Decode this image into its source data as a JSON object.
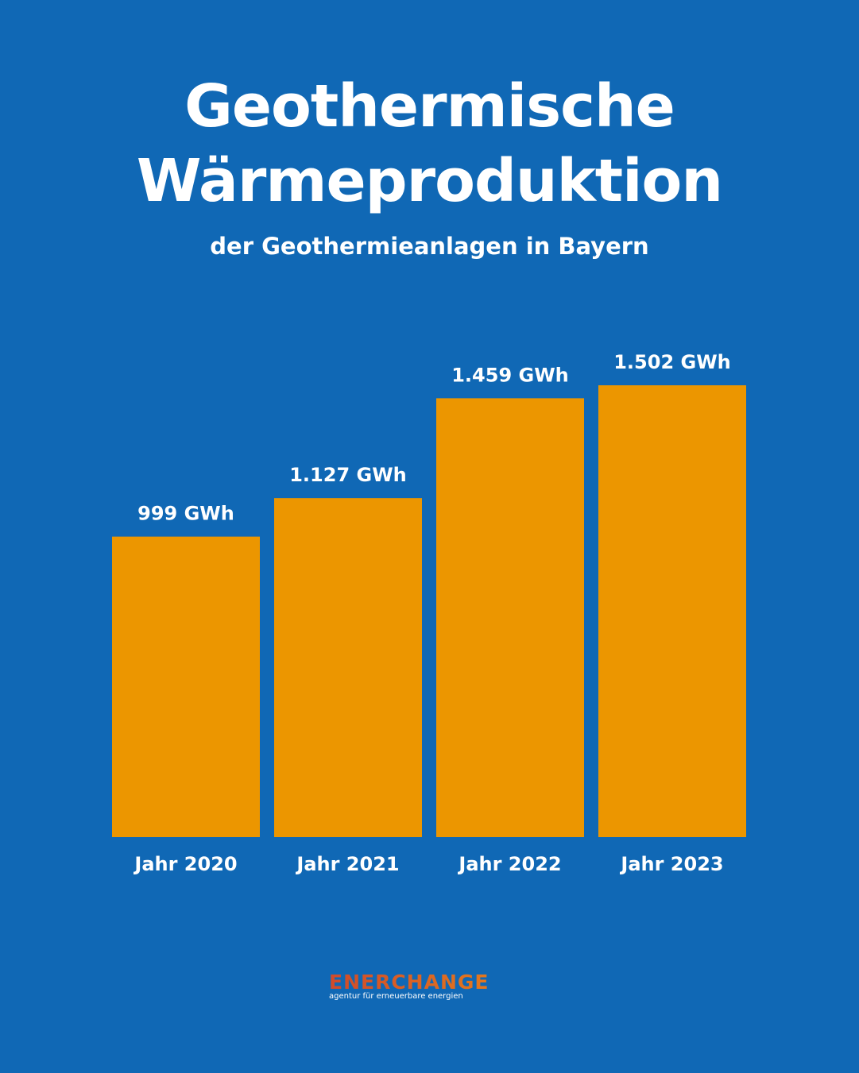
{
  "title_line1": "Geothermische",
  "title_line2": "Wärmeproduktion",
  "subtitle": "der Geothermieanlagen in Bayern",
  "logo": {
    "name": "ENERCHANGE",
    "tagline": "agentur für erneuerbare energien"
  },
  "colors": {
    "background": "#1068b5",
    "bar": "#ec9600",
    "text": "#ffffff"
  },
  "chart_data": {
    "type": "bar",
    "title": "Geothermische Wärmeproduktion",
    "subtitle": "der Geothermieanlagen in Bayern",
    "categories": [
      "Jahr 2020",
      "Jahr 2021",
      "Jahr 2022",
      "Jahr 2023"
    ],
    "values": [
      999,
      1127,
      1459,
      1502
    ],
    "data_labels": [
      "999 GWh",
      "1.127 GWh",
      "1.459 GWh",
      "1.502 GWh"
    ],
    "unit": "GWh",
    "ylim": [
      0,
      1600
    ],
    "grid": false,
    "legend": "none"
  }
}
